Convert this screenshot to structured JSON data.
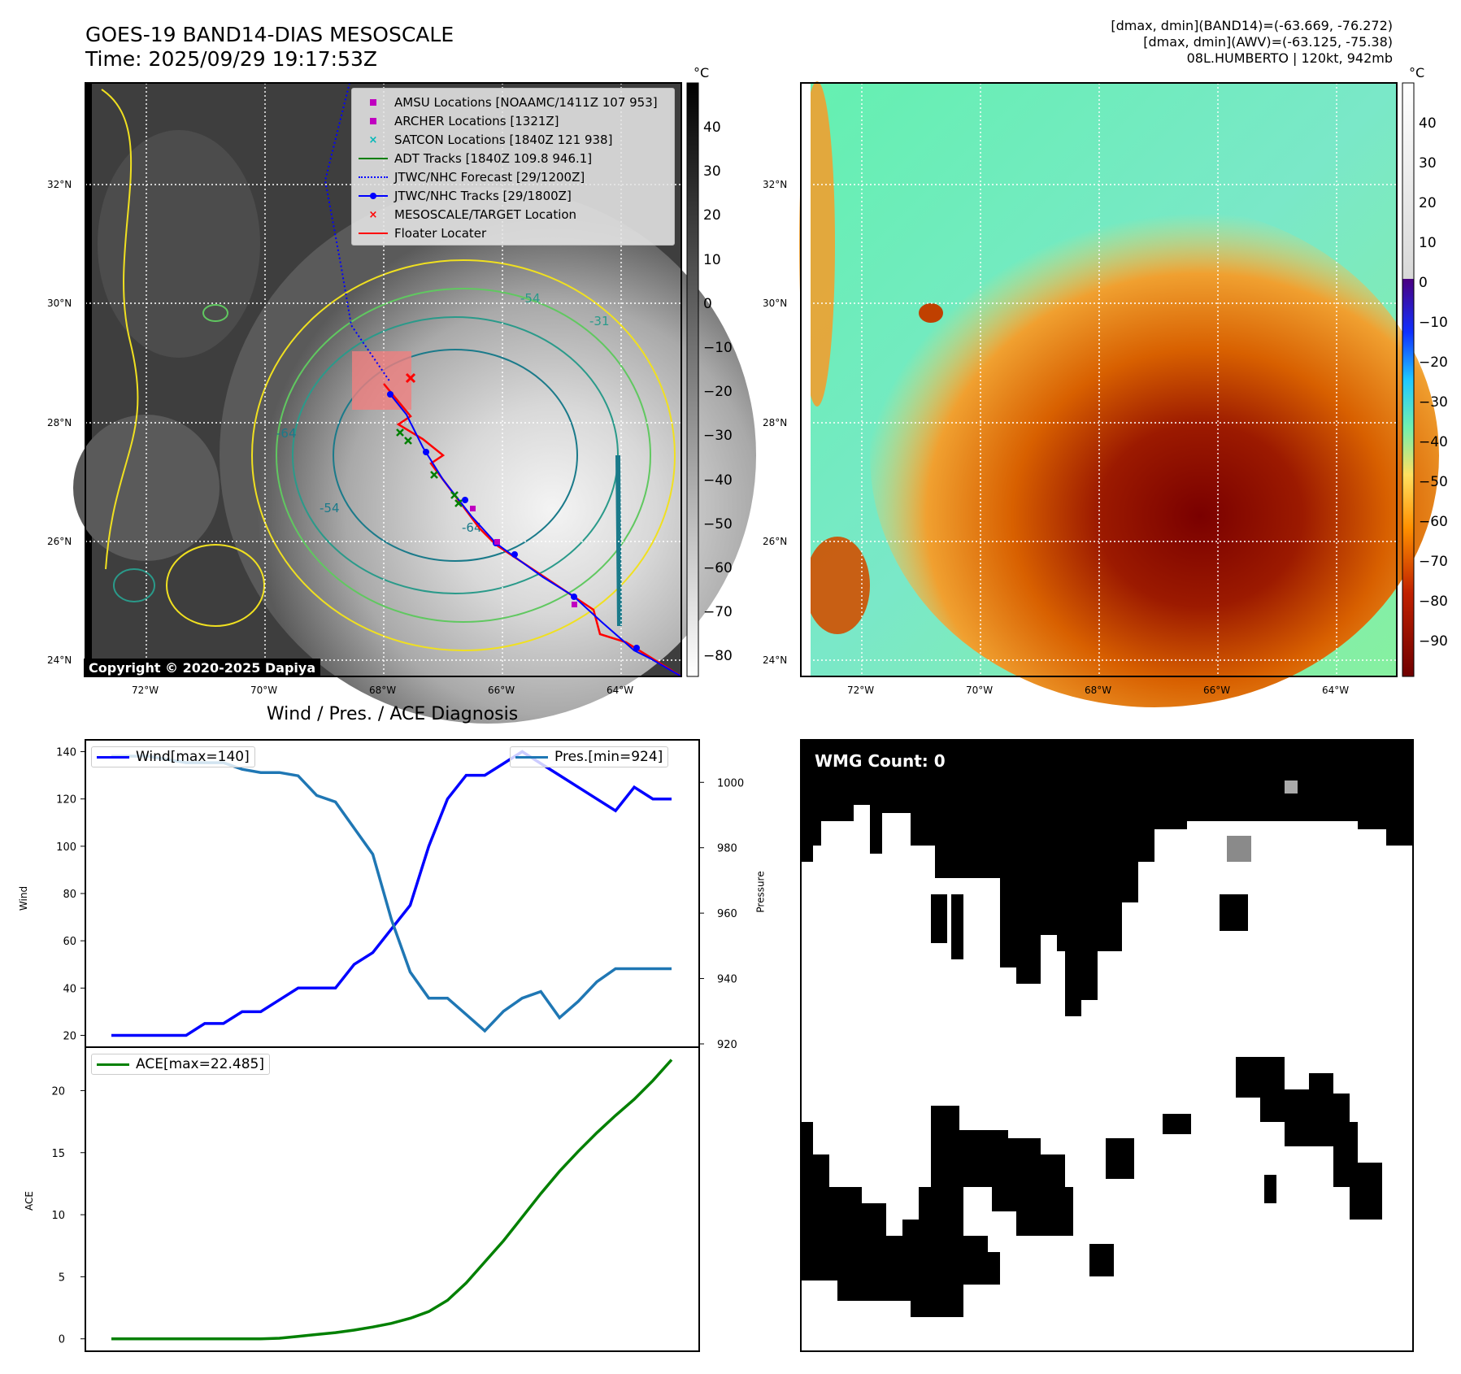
{
  "header": {
    "title_line1": "GOES-19 BAND14-DIAS MESOSCALE",
    "title_line2": "Time: 2025/09/29 19:17:53Z",
    "info_line1": "[dmax, dmin](BAND14)=(-63.669, -76.272)",
    "info_line2": "[dmax, dmin](AWV)=(-63.125, -75.38)",
    "info_line3": "08L.HUMBERTO | 120kt, 942mb"
  },
  "map_panel": {
    "unit": "°C",
    "lat_labels": [
      "32°N",
      "30°N",
      "28°N",
      "26°N",
      "24°N"
    ],
    "lon_labels": [
      "72°W",
      "70°W",
      "68°W",
      "66°W",
      "64°W"
    ],
    "contour_labels": [
      "-54",
      "-64",
      "-54",
      "-64",
      "-54",
      "-64",
      "-31"
    ],
    "colorbar_ticks": [
      "40",
      "30",
      "20",
      "10",
      "0",
      "−10",
      "−20",
      "−30",
      "−40",
      "−50",
      "−60",
      "−70",
      "−80"
    ],
    "copyright": "Copyright © 2020-2025 Dapiya",
    "legend": [
      {
        "label": "AMSU Locations [NOAAMC/1411Z 107 953]",
        "color": "#c000c0",
        "symbol": "square"
      },
      {
        "label": "ARCHER Locations [1321Z]",
        "color": "#c000c0",
        "symbol": "square"
      },
      {
        "label": "SATCON Locations [1840Z 121 938]",
        "color": "#00b8b8",
        "symbol": "x"
      },
      {
        "label": "ADT Tracks [1840Z 109.8 946.1]",
        "color": "#007f00",
        "symbol": "line"
      },
      {
        "label": "JTWC/NHC Forecast [29/1200Z]",
        "color": "#0000ff",
        "symbol": "dotted"
      },
      {
        "label": "JTWC/NHC Tracks [29/1800Z]",
        "color": "#0000ff",
        "symbol": "line-dot"
      },
      {
        "label": "MESOSCALE/TARGET Location",
        "color": "#ff0000",
        "symbol": "x"
      },
      {
        "label": "Floater Locater",
        "color": "#ff0000",
        "symbol": "line"
      }
    ]
  },
  "awv_panel": {
    "unit": "°C",
    "lat_labels": [
      "32°N",
      "30°N",
      "28°N",
      "26°N",
      "24°N"
    ],
    "lon_labels": [
      "72°W",
      "70°W",
      "68°W",
      "66°W",
      "64°W"
    ],
    "colorbar_ticks": [
      "40",
      "30",
      "20",
      "10",
      "0",
      "−10",
      "−20",
      "−30",
      "−40",
      "−50",
      "−60",
      "−70",
      "−80",
      "−90"
    ]
  },
  "diagnosis": {
    "title": "Wind / Pres. / ACE Diagnosis",
    "wind_legend": "Wind[max=140]",
    "pres_legend": "Pres.[min=924]",
    "ace_legend": "ACE[max=22.485]",
    "wind_axis_label": "Wind",
    "pres_axis_label": "Pressure",
    "ace_axis_label": "ACE",
    "colors": {
      "wind": "#0000ff",
      "pressure": "#1f77b4",
      "ace": "#008000"
    }
  },
  "wmg": {
    "label": "WMG Count: 0"
  },
  "chart_data": [
    {
      "type": "line",
      "x": [
        0,
        1,
        2,
        3,
        4,
        5,
        6,
        7,
        8,
        9,
        10,
        11,
        12,
        13,
        14,
        15,
        16,
        17,
        18,
        19,
        20,
        21,
        22,
        23,
        24,
        25,
        26,
        27,
        28,
        29,
        30
      ],
      "series": [
        {
          "name": "Wind[max=140]",
          "values": [
            20,
            20,
            20,
            20,
            20,
            25,
            25,
            30,
            30,
            35,
            40,
            40,
            40,
            50,
            55,
            65,
            75,
            100,
            120,
            130,
            130,
            135,
            140,
            135,
            130,
            125,
            120,
            115,
            125,
            120,
            120
          ]
        },
        {
          "name": "Pres.[min=924]",
          "values": [
            1008,
            1008,
            1008,
            1007,
            1006,
            1006,
            1006,
            1004,
            1003,
            1003,
            1002,
            996,
            994,
            986,
            978,
            958,
            942,
            934,
            934,
            929,
            924,
            930,
            934,
            936,
            928,
            933,
            939,
            943,
            943,
            943,
            943
          ]
        }
      ],
      "yleft_label": "Wind",
      "yright_label": "Pressure",
      "yleft_ticks": [
        20,
        40,
        60,
        80,
        100,
        120,
        140
      ],
      "yright_ticks": [
        920,
        940,
        960,
        980,
        1000
      ],
      "ylim_left": [
        15,
        145
      ],
      "ylim_right": [
        919,
        1013
      ]
    },
    {
      "type": "line",
      "x": [
        0,
        1,
        2,
        3,
        4,
        5,
        6,
        7,
        8,
        9,
        10,
        11,
        12,
        13,
        14,
        15,
        16,
        17,
        18,
        19,
        20,
        21,
        22,
        23,
        24,
        25,
        26,
        27,
        28,
        29,
        30
      ],
      "series": [
        {
          "name": "ACE[max=22.485]",
          "values": [
            0,
            0,
            0,
            0,
            0,
            0,
            0,
            0,
            0,
            0.05,
            0.2,
            0.35,
            0.5,
            0.7,
            0.95,
            1.25,
            1.65,
            2.2,
            3.1,
            4.5,
            6.2,
            7.9,
            9.8,
            11.7,
            13.5,
            15.1,
            16.6,
            18.0,
            19.3,
            20.8,
            22.485
          ]
        }
      ],
      "ylabel": "ACE",
      "yticks": [
        0,
        5,
        10,
        15,
        20
      ],
      "ylim": [
        -1,
        23.5
      ]
    }
  ]
}
